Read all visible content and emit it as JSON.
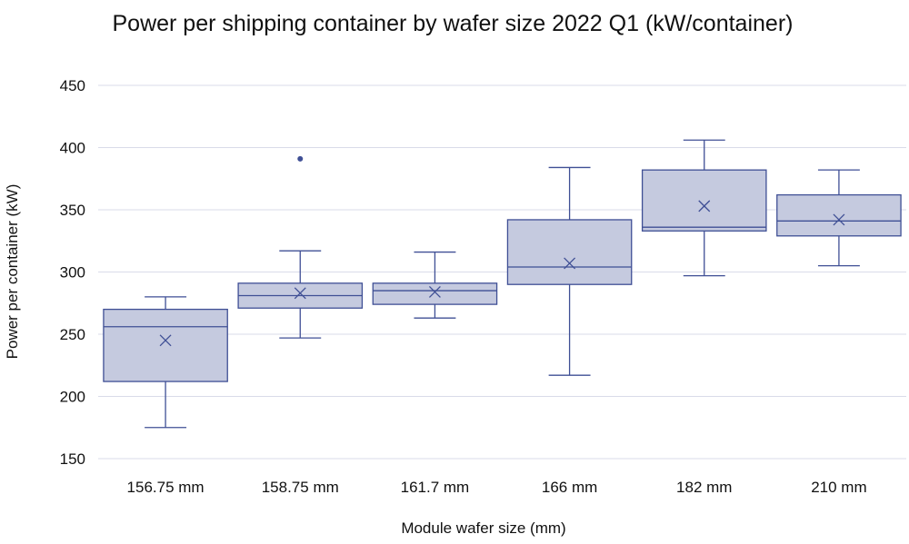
{
  "chart_data": {
    "type": "box",
    "title": "Power per shipping container by wafer size 2022 Q1 (kW/container)",
    "xlabel": "Module wafer size (mm)",
    "ylabel": "Power per container (kW)",
    "ylim": [
      150,
      450
    ],
    "yticks": [
      150,
      200,
      250,
      300,
      350,
      400,
      450
    ],
    "ytick_labels": [
      "150",
      "200",
      "250",
      "300",
      "350",
      "400",
      "450"
    ],
    "grid": true,
    "legend": "none",
    "colors": {
      "box_fill": "#c5cadf",
      "box_stroke": "#3f4f95",
      "grid": "#d9dbe9"
    },
    "categories": [
      "156.75 mm",
      "158.75 mm",
      "161.7 mm",
      "166 mm",
      "182 mm",
      "210 mm"
    ],
    "boxes": [
      {
        "min": 175,
        "q1": 212,
        "median": 256,
        "q3": 270,
        "max": 280,
        "mean": 245,
        "outliers": []
      },
      {
        "min": 247,
        "q1": 271,
        "median": 281,
        "q3": 291,
        "max": 317,
        "mean": 283,
        "outliers": [
          391
        ]
      },
      {
        "min": 263,
        "q1": 274,
        "median": 285,
        "q3": 291,
        "max": 316,
        "mean": 284,
        "outliers": []
      },
      {
        "min": 217,
        "q1": 290,
        "median": 304,
        "q3": 342,
        "max": 384,
        "mean": 307,
        "outliers": []
      },
      {
        "min": 297,
        "q1": 333,
        "median": 336,
        "q3": 382,
        "max": 406,
        "mean": 353,
        "outliers": []
      },
      {
        "min": 305,
        "q1": 329,
        "median": 341,
        "q3": 362,
        "max": 382,
        "mean": 342,
        "outliers": []
      }
    ]
  }
}
